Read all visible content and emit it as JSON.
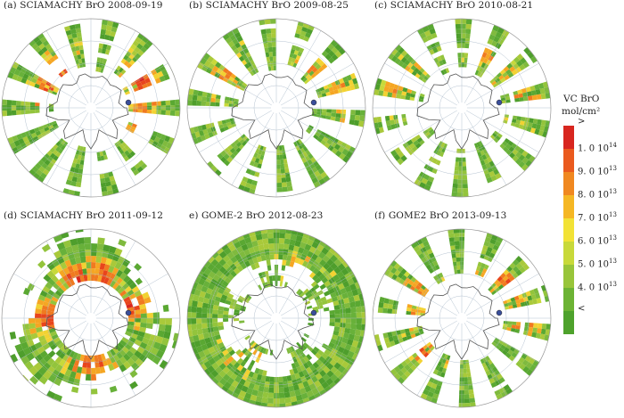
{
  "panels": [
    {
      "label": "(a) SCIAMACHY  BrO  2008-09-19",
      "coverage": "swath",
      "intensity": 0.95,
      "hot": [
        [
          -30,
          0.62
        ],
        [
          200,
          0.55
        ],
        [
          230,
          0.55
        ],
        [
          10,
          0.55
        ]
      ]
    },
    {
      "label": "(b) SCIAMACHY  BrO  2009-08-25",
      "coverage": "swath",
      "intensity": 0.55,
      "hot": [
        [
          -10,
          0.72
        ],
        [
          -40,
          0.6
        ],
        [
          210,
          0.65
        ]
      ]
    },
    {
      "label": "(c) SCIAMACHY  BrO  2010-08-21",
      "coverage": "swath",
      "intensity": 0.6,
      "hot": [
        [
          -60,
          0.62
        ],
        [
          -15,
          0.7
        ],
        [
          200,
          0.7
        ]
      ]
    },
    {
      "label": "(d) SCIAMACHY  BrO  2011-09-12",
      "coverage": "ring",
      "intensity": 1.0,
      "hot": [
        [
          -80,
          0.45
        ],
        [
          -20,
          0.45
        ],
        [
          90,
          0.5
        ],
        [
          180,
          0.45
        ],
        [
          250,
          0.45
        ]
      ]
    },
    {
      "label": "e)  GOME-2  BrO  2012-08-23",
      "coverage": "full",
      "intensity": 0.4,
      "hot": [
        [
          -70,
          0.55
        ],
        [
          135,
          0.55
        ]
      ]
    },
    {
      "label": "(f)  GOME2  BrO  2013-09-13",
      "coverage": "swath",
      "intensity": 0.75,
      "hot": [
        [
          -150,
          0.55
        ],
        [
          -45,
          0.6
        ],
        [
          0,
          0.65
        ],
        [
          140,
          0.55
        ]
      ]
    }
  ],
  "legend": {
    "title_line1": "VC  BrO",
    "title_line2": "mol/cm²",
    "colors": [
      "#d8261f",
      "#ea5a1e",
      "#f08820",
      "#f5b724",
      "#f2e236",
      "#c8d93a",
      "#98c53a",
      "#6cb334",
      "#4ea22c"
    ],
    "ticks": [
      {
        "mantissa": ">",
        "exp": ""
      },
      {
        "mantissa": "1. 0  10",
        "exp": "14"
      },
      {
        "mantissa": "9. 0  10",
        "exp": "13"
      },
      {
        "mantissa": "8. 0  10",
        "exp": "13"
      },
      {
        "mantissa": "7. 0  10",
        "exp": "13"
      },
      {
        "mantissa": "6. 0  10",
        "exp": "13"
      },
      {
        "mantissa": "5. 0  10",
        "exp": "13"
      },
      {
        "mantissa": "4. 0  10",
        "exp": "13"
      },
      {
        "mantissa": "<",
        "exp": ""
      }
    ]
  }
}
